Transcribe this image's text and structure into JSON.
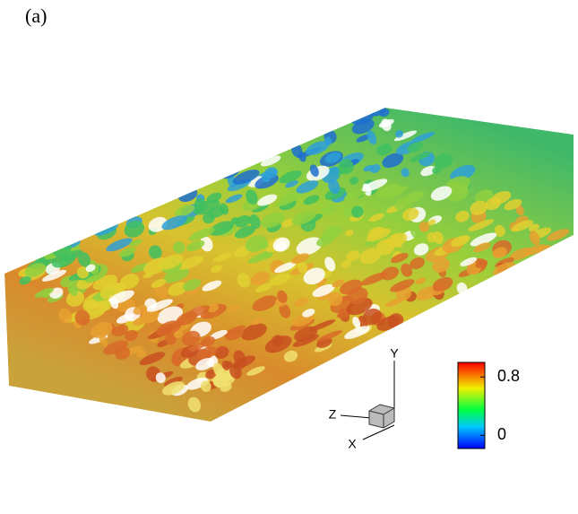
{
  "panel_label": "(a)",
  "axes_triad": {
    "y": "Y",
    "z": "Z",
    "x": "X"
  },
  "colorbar": {
    "ylim": [
      -0.18,
      1.0
    ],
    "yticks": [
      0,
      0.8
    ]
  }
}
